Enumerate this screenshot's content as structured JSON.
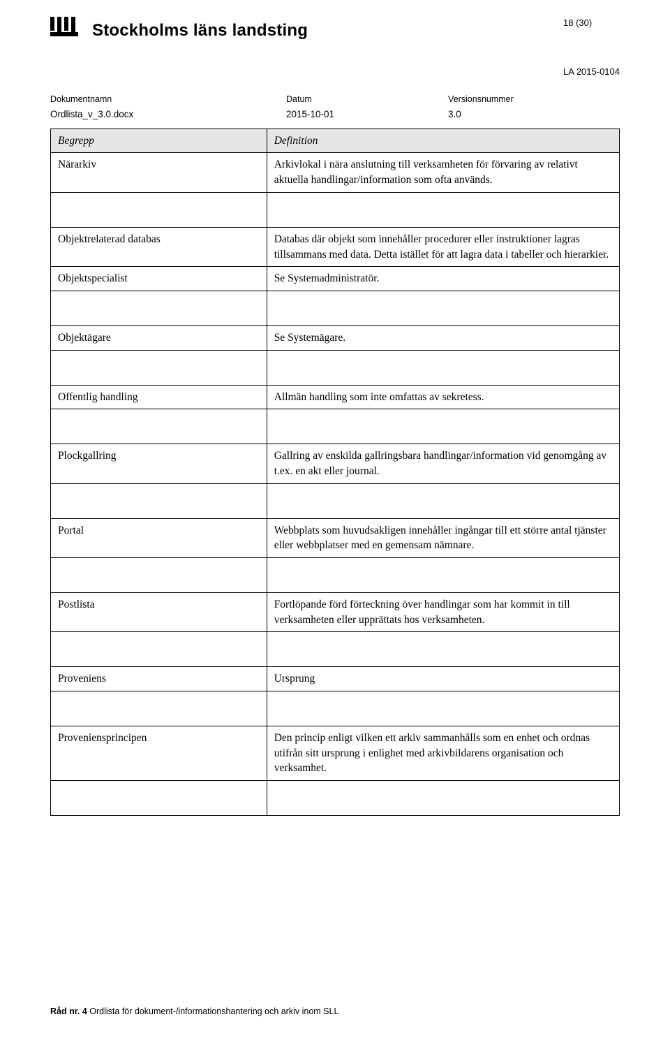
{
  "header": {
    "org_name": "Stockholms läns landsting",
    "page_indicator": "18 (30)",
    "doc_id": "LA 2015-0104"
  },
  "meta": {
    "doc_name_label": "Dokumentnamn",
    "doc_name_value": "Ordlista_v_3.0.docx",
    "date_label": "Datum",
    "date_value": "2015-10-01",
    "version_label": "Versionsnummer",
    "version_value": "3.0"
  },
  "table": {
    "header_term": "Begrepp",
    "header_def": "Definition",
    "rows": [
      {
        "term": "Närarkiv",
        "def": "Arkivlokal i nära anslutning till verksamheten för förvaring av relativt aktuella handlingar/information som ofta används."
      },
      {
        "term": "Objektrelaterad databas",
        "def": "Databas där objekt som innehåller procedurer eller instruktioner lagras tillsammans med data. Detta istället för att lagra data i tabeller och hierarkier."
      },
      {
        "term": "Objektspecialist",
        "def": "Se Systemadministratör."
      },
      {
        "term": "Objektägare",
        "def": "Se Systemägare."
      },
      {
        "term": "Offentlig handling",
        "def": "Allmän handling som inte omfattas av sekretess."
      },
      {
        "term": "Plockgallring",
        "def": "Gallring av enskilda gallringsbara handlingar/information vid genomgång av t.ex. en akt eller journal."
      },
      {
        "term": "Portal",
        "def": "Webbplats som huvudsakligen innehåller ingångar till ett större antal tjänster eller webbplatser med en gemensam nämnare."
      },
      {
        "term": "Postlista",
        "def": "Fortlöpande förd förteckning över handlingar som har kommit in till verksamheten eller upprättats hos verksamheten."
      },
      {
        "term": "Proveniens",
        "def": "Ursprung"
      },
      {
        "term": "Proveniensprincipen",
        "def": "Den princip enligt vilken ett arkiv sammanhålls som en enhet och ordnas utifrån sitt ursprung i enlighet med arkivbildarens organisation och verksamhet."
      }
    ],
    "spacer_after": [
      0,
      2,
      3,
      4,
      5,
      6,
      7,
      8,
      9
    ]
  },
  "footer": {
    "bold": "Råd nr. 4",
    "rest": "Ordlista för dokument-/informationshantering och arkiv inom SLL"
  },
  "colors": {
    "header_bg": "#e6e6e6",
    "border": "#000000",
    "text": "#000000"
  }
}
